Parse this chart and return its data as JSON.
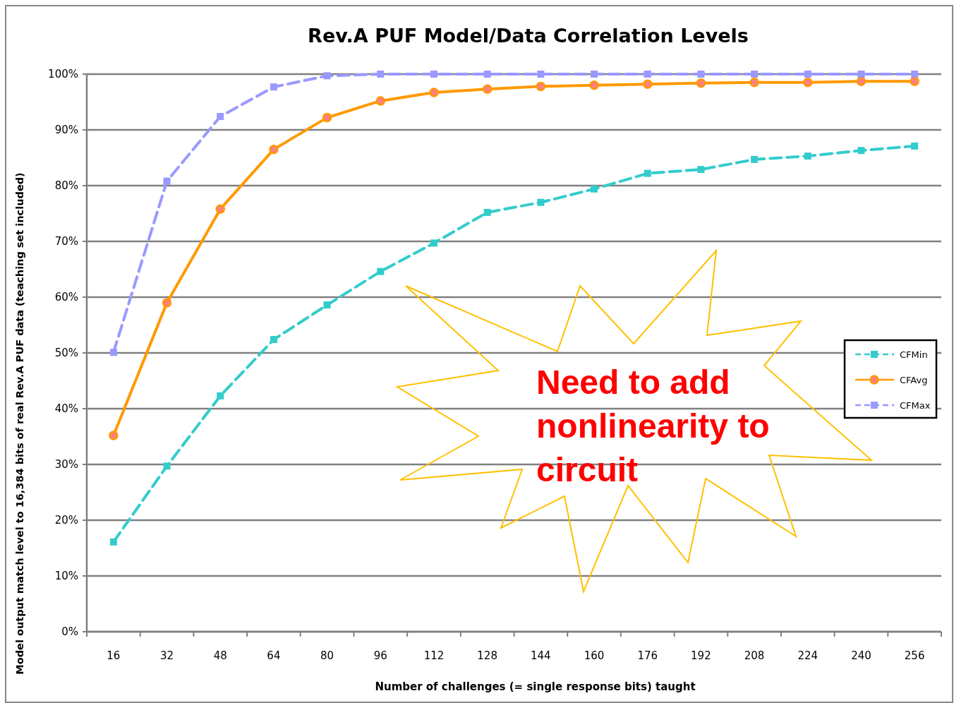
{
  "chart_data": {
    "type": "line",
    "title": "Rev.A PUF Model/Data Correlation Levels",
    "xlabel": "Number of challenges  (= single response bits) taught",
    "ylabel": "Model output match level to 16,384 bits of real Rev.A PUF data (teaching set included)",
    "categories": [
      "16",
      "32",
      "48",
      "64",
      "80",
      "96",
      "112",
      "128",
      "144",
      "160",
      "176",
      "192",
      "208",
      "224",
      "240",
      "256"
    ],
    "series": [
      {
        "name": "CFMin",
        "color": "#33cccc",
        "line_style": "dashed",
        "marker": "square",
        "values": [
          16.1,
          29.7,
          42.3,
          52.4,
          58.6,
          64.6,
          69.7,
          75.2,
          77.0,
          79.4,
          82.2,
          82.9,
          84.7,
          85.3,
          86.3,
          87.1
        ]
      },
      {
        "name": "CFAvg",
        "color": "#ff9900",
        "line_style": "solid",
        "marker": "circle",
        "values": [
          35.2,
          59.0,
          75.8,
          86.5,
          92.2,
          95.2,
          96.7,
          97.3,
          97.8,
          98.0,
          98.2,
          98.4,
          98.5,
          98.5,
          98.7,
          98.7
        ]
      },
      {
        "name": "CFMax",
        "color": "#9999ff",
        "line_style": "dashed",
        "marker": "square",
        "values": [
          50.1,
          80.8,
          92.4,
          97.7,
          99.7,
          100,
          100,
          100,
          100,
          100,
          100,
          100,
          100,
          100,
          100,
          100
        ]
      }
    ],
    "ylim": [
      0,
      100
    ],
    "yticks": [
      {
        "value": 0,
        "label": "0%"
      },
      {
        "value": 10,
        "label": "10%"
      },
      {
        "value": 20,
        "label": "20%"
      },
      {
        "value": 30,
        "label": "30%"
      },
      {
        "value": 40,
        "label": "40%"
      },
      {
        "value": 50,
        "label": "50%"
      },
      {
        "value": 60,
        "label": "60%"
      },
      {
        "value": 70,
        "label": "70%"
      },
      {
        "value": 80,
        "label": "80%"
      },
      {
        "value": 90,
        "label": "90%"
      },
      {
        "value": 100,
        "label": "100%"
      }
    ],
    "grid": "y",
    "legend": "right",
    "annotations": [
      "Need to add nonlinearity to circuit"
    ]
  }
}
